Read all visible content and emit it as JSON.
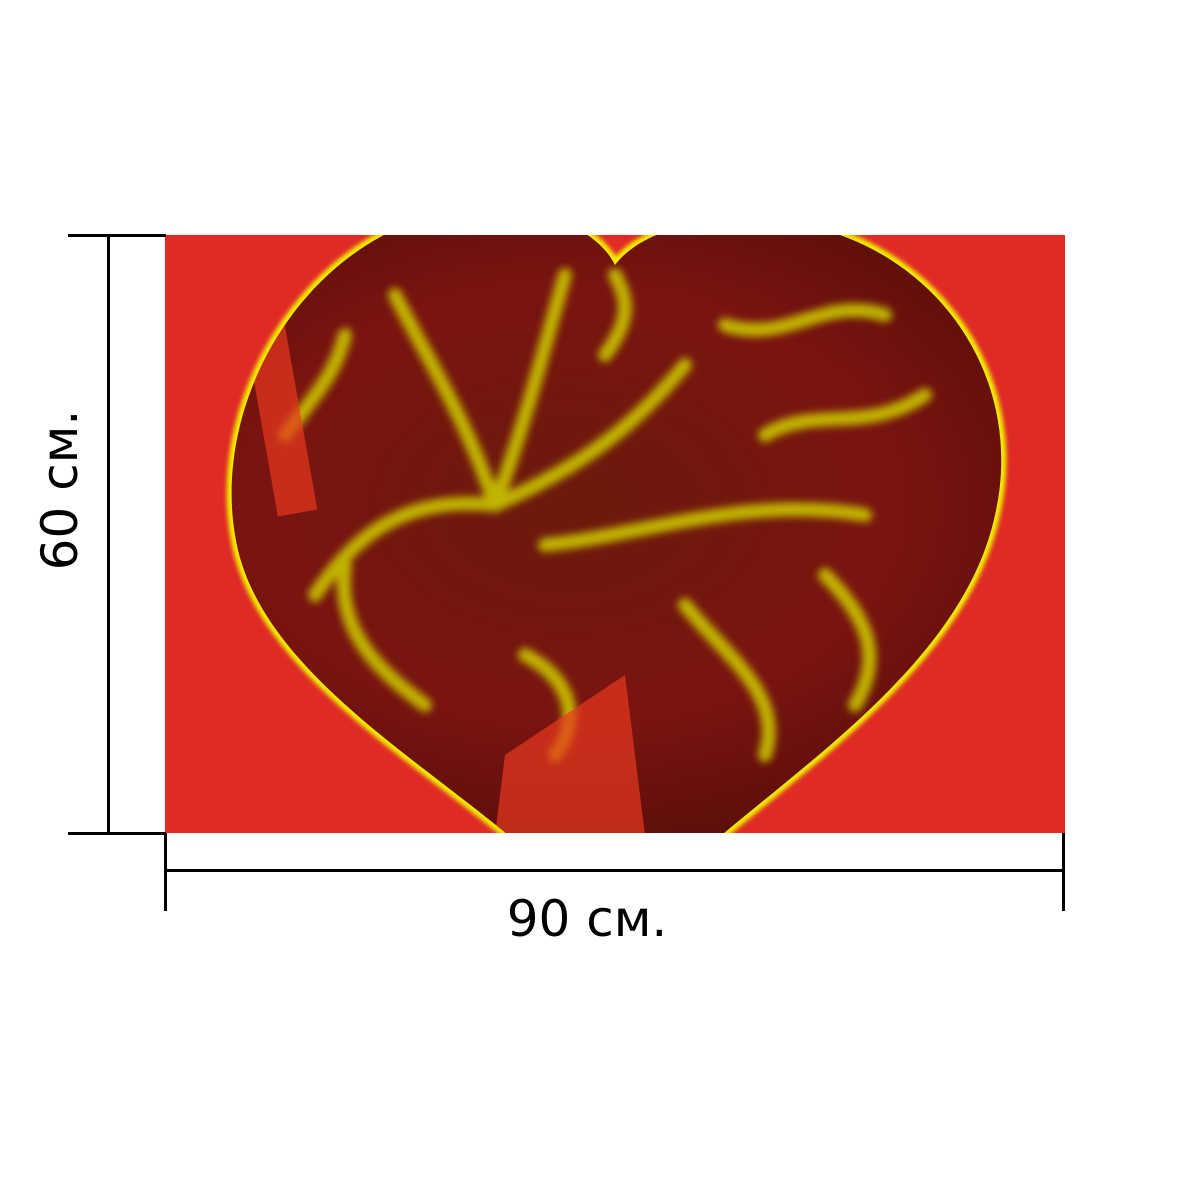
{
  "product": {
    "width_label": "90 см.",
    "height_label": "60 см."
  },
  "colors": {
    "background": "#e02a26",
    "heart_fill": "#8a1414",
    "glow": "#f2ee00"
  }
}
